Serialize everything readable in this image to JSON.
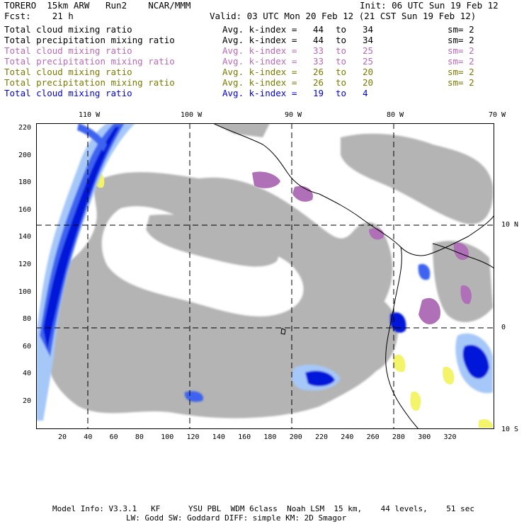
{
  "header": {
    "line1_left": "TORERO  15km ARW   Run2    NCAR/MMM",
    "line1_right": "Init: 06 UTC Sun 19 Feb 12",
    "line2_left": "Fcst:    21 h",
    "line2_right": "Valid: 03 UTC Mon 20 Feb 12 (21 CST Sun 19 Feb 12)"
  },
  "legend": [
    {
      "field": "Total cloud mixing ratio",
      "index_label": "Avg. k-index =",
      "from": "44",
      "to_word": "to",
      "to": "34",
      "sm": "sm= 2",
      "color": "#000000"
    },
    {
      "field": "Total precipitation mixing ratio",
      "index_label": "Avg. k-index =",
      "from": "44",
      "to_word": "to",
      "to": "34",
      "sm": "sm= 2",
      "color": "#000000"
    },
    {
      "field": "Total cloud mixing ratio",
      "index_label": "Avg. k-index =",
      "from": "33",
      "to_word": "to",
      "to": "25",
      "sm": "sm= 2",
      "color": "#b86ab8"
    },
    {
      "field": "Total precipitation mixing ratio",
      "index_label": "Avg. k-index =",
      "from": "33",
      "to_word": "to",
      "to": "25",
      "sm": "sm= 2",
      "color": "#b86ab8"
    },
    {
      "field": "Total cloud mixing ratio",
      "index_label": "Avg. k-index =",
      "from": "26",
      "to_word": "to",
      "to": "20",
      "sm": "sm= 2",
      "color": "#7a7a00"
    },
    {
      "field": "Total precipitation mixing ratio",
      "index_label": "Avg. k-index =",
      "from": "26",
      "to_word": "to",
      "to": "20",
      "sm": "sm= 2",
      "color": "#7a7a00"
    },
    {
      "field": "Total cloud mixing ratio",
      "index_label": "Avg. k-index =",
      "from": "19",
      "to_word": "to",
      "to": "4",
      "sm": "",
      "color": "#0000dd"
    }
  ],
  "map": {
    "lon_labels": [
      "110 W",
      "100 W",
      "90 W",
      "80 W",
      "70 W"
    ],
    "lat_labels": [
      "10 N",
      "0",
      "10 S"
    ],
    "x_ticks": [
      "20",
      "40",
      "60",
      "80",
      "100",
      "120",
      "140",
      "160",
      "180",
      "200",
      "220",
      "240",
      "260",
      "280",
      "300",
      "320"
    ],
    "y_ticks": [
      "220",
      "200",
      "180",
      "160",
      "140",
      "120",
      "100",
      "80",
      "60",
      "40",
      "20"
    ],
    "colors": {
      "cloud_gray": "#b4b4b4",
      "purple": "#b070b8",
      "yellow": "#f4f46a",
      "light_cyan": "#c8ecf8",
      "light_blue": "#a6c8f8",
      "mid_blue": "#3c64f0",
      "dark_blue": "#0018d8",
      "coast": "#000000"
    }
  },
  "footer": {
    "line1": "Model Info: V3.3.1   KF      YSU PBL  WDM 6class  Noah LSM  15 km,    44 levels,    51 sec",
    "line2": "LW: Godd SW: Goddard DIFF: simple KM: 2D Smagor"
  }
}
